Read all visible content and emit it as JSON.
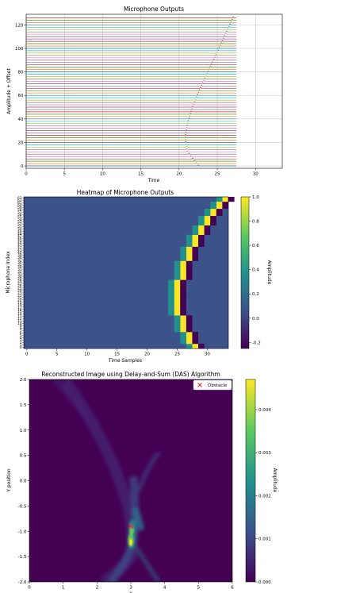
{
  "chart_data": [
    {
      "type": "line",
      "title": "Microphone Outputs",
      "xlabel": "Time",
      "ylabel": "Amplitude + Offset",
      "xlim": [
        0,
        33.5
      ],
      "ylim": [
        -2,
        129
      ],
      "xticks": [
        0,
        5,
        10,
        15,
        20,
        25,
        30
      ],
      "yticks": [
        0,
        20,
        40,
        60,
        80,
        100,
        120
      ],
      "grid": true,
      "series_count": 64,
      "offset_step": 2,
      "trace_x_range": [
        0,
        27.5
      ],
      "pulse_time_by_mic": [
        22.5,
        21.0,
        20.8,
        21.2,
        21.8,
        22.6,
        23.5,
        24.4,
        25.3,
        26.2,
        27.1
      ]
    },
    {
      "type": "heatmap",
      "title": "Heatmap of Microphone Outputs",
      "xlabel": "Time Samples",
      "ylabel": "Microphone Index",
      "colorbar_label": "Amplitude",
      "xlim": [
        -0.5,
        33.5
      ],
      "xticks": [
        0,
        5,
        10,
        15,
        20,
        25,
        30
      ],
      "rows": 64,
      "colorbar_ticks": [
        -0.2,
        0.0,
        0.2,
        0.4,
        0.6,
        0.8,
        1.0
      ],
      "clim": [
        -0.25,
        1.0
      ],
      "background_value": 0.0,
      "arc_vertex": {
        "row": 20,
        "sample": 25
      },
      "arc_end": {
        "row_top": 63,
        "sample_top": 33,
        "row_bottom": 0,
        "sample_bottom": 28
      }
    },
    {
      "type": "heatmap",
      "title": "Reconstructed Image using Delay-and-Sum (DAS) Algorithm",
      "xlabel": "X",
      "ylabel": "Y position",
      "colorbar_label": "Amplitude",
      "xlim": [
        0,
        6
      ],
      "ylim": [
        -2.0,
        2.0
      ],
      "xticks": [
        0,
        1,
        2,
        3,
        4,
        5,
        6
      ],
      "yticks": [
        "-2.0",
        "-1.5",
        "-1.0",
        "-0.5",
        "0.0",
        "0.5",
        "1.0",
        "1.5",
        "2.0"
      ],
      "colorbar_ticks": [
        "0.000",
        "0.001",
        "0.002",
        "0.003",
        "0.004"
      ],
      "clim": [
        0,
        0.0047
      ],
      "legend": {
        "label": "Obstacle",
        "position": "top-right"
      },
      "obstacle": {
        "x": 3.0,
        "y": -0.9
      },
      "peak_region": {
        "x": 3.0,
        "y": -1.15,
        "value": 0.0047
      }
    }
  ],
  "colors": {
    "trace_palette": [
      "#1f77b4",
      "#ff7f0e",
      "#2ca02c",
      "#d62728",
      "#9467bd",
      "#8c564b",
      "#e377c2",
      "#7f7f7f",
      "#bcbd22",
      "#17becf"
    ],
    "obstacle_marker": "#e8303a"
  }
}
